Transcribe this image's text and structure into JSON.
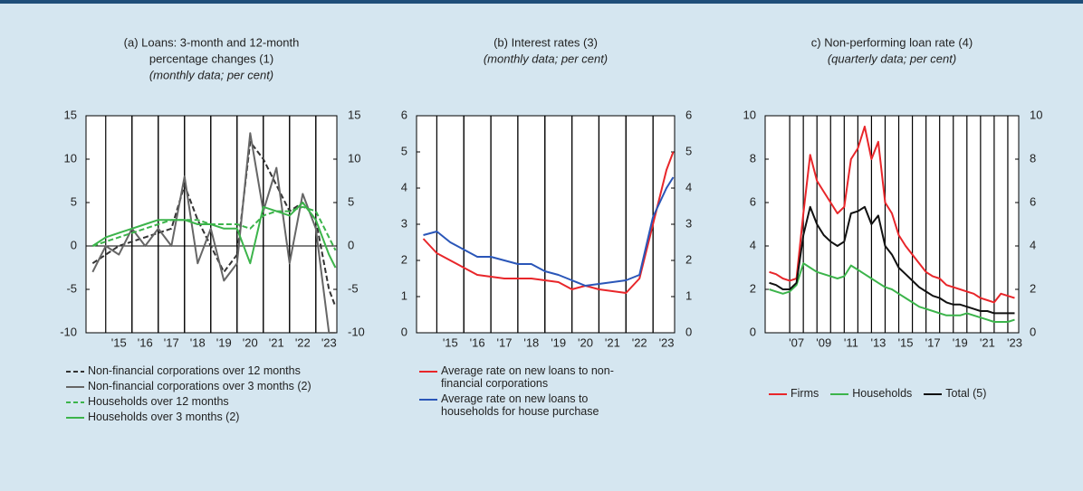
{
  "chart_data": [
    {
      "type": "line",
      "title": [
        "(a) Loans: 3-month and 12-month",
        "percentage changes (1)"
      ],
      "subtitle": "(monthly data; per cent)",
      "x": [
        2014.5,
        2015,
        2015.5,
        2016,
        2016.5,
        2017,
        2017.5,
        2018,
        2018.5,
        2019,
        2019.5,
        2020,
        2020.5,
        2021,
        2021.5,
        2022,
        2022.5,
        2023,
        2023.5,
        2023.75
      ],
      "xlim": [
        2014.25,
        2023.8
      ],
      "xticks": [
        {
          "value": 2015.5,
          "label": "'15"
        },
        {
          "value": 2016.5,
          "label": "'16"
        },
        {
          "value": 2017.5,
          "label": "'17"
        },
        {
          "value": 2018.5,
          "label": "'18"
        },
        {
          "value": 2019.5,
          "label": "'19"
        },
        {
          "value": 2020.5,
          "label": "'20"
        },
        {
          "value": 2021.5,
          "label": "'21"
        },
        {
          "value": 2022.5,
          "label": "'22"
        },
        {
          "value": 2023.5,
          "label": "'23"
        }
      ],
      "ylim": [
        -10,
        15
      ],
      "yticks": [
        -10,
        -5,
        0,
        5,
        10,
        15
      ],
      "y2lim": [
        -10,
        15
      ],
      "y2ticks": [
        -10,
        -5,
        0,
        5,
        10,
        15
      ],
      "series": [
        {
          "name": "Non-financial corporations over 12 months",
          "color": "#333333",
          "dashed": true,
          "values": [
            -2,
            -1,
            0,
            0.5,
            1,
            1.5,
            2,
            7,
            3,
            0,
            -3,
            -1,
            12,
            10,
            7,
            4,
            5,
            3,
            -5,
            -7
          ]
        },
        {
          "name": "Non-financial corporations over 3 months (2)",
          "color": "#666666",
          "dashed": false,
          "values": [
            -3,
            0,
            -1,
            2,
            0,
            2,
            0,
            8,
            -2,
            2,
            -4,
            -2,
            13,
            4,
            9,
            -2,
            6,
            2,
            -10,
            -10
          ]
        },
        {
          "name": "Households over 12 months",
          "color": "#3cb44b",
          "dashed": true,
          "values": [
            0,
            0.5,
            1,
            1.5,
            2,
            2.5,
            3,
            3,
            3,
            2.5,
            2.5,
            2.5,
            2,
            3.5,
            4,
            4,
            4.5,
            4,
            1,
            -0.5
          ]
        },
        {
          "name": "Households over 3 months (2)",
          "color": "#3cb44b",
          "dashed": false,
          "values": [
            0,
            1,
            1.5,
            2,
            2.5,
            3,
            3,
            3,
            2.5,
            2.5,
            2,
            2,
            -2,
            4.5,
            4,
            3.5,
            5,
            3,
            -1,
            -2.5
          ]
        }
      ]
    },
    {
      "type": "line",
      "title": [
        "(b) Interest rates (3)"
      ],
      "subtitle": "(monthly data; per cent)",
      "x": [
        2014.5,
        2015,
        2015.5,
        2016,
        2016.5,
        2017,
        2017.5,
        2018,
        2018.5,
        2019,
        2019.5,
        2020,
        2020.5,
        2021,
        2021.5,
        2022,
        2022.5,
        2023,
        2023.5,
        2023.75
      ],
      "xlim": [
        2014.25,
        2023.8
      ],
      "xticks": [
        {
          "value": 2015.5,
          "label": "'15"
        },
        {
          "value": 2016.5,
          "label": "'16"
        },
        {
          "value": 2017.5,
          "label": "'17"
        },
        {
          "value": 2018.5,
          "label": "'18"
        },
        {
          "value": 2019.5,
          "label": "'19"
        },
        {
          "value": 2020.5,
          "label": "'20"
        },
        {
          "value": 2021.5,
          "label": "'21"
        },
        {
          "value": 2022.5,
          "label": "'22"
        },
        {
          "value": 2023.5,
          "label": "'23"
        }
      ],
      "ylim": [
        0,
        6
      ],
      "yticks": [
        0,
        1,
        2,
        3,
        4,
        5,
        6
      ],
      "y2lim": [
        0,
        6
      ],
      "y2ticks": [
        0,
        1,
        2,
        3,
        4,
        5,
        6
      ],
      "series": [
        {
          "name": "Average rate on new loans to non-financial corporations",
          "color": "#e8262a",
          "dashed": false,
          "values": [
            2.6,
            2.2,
            2.0,
            1.8,
            1.6,
            1.55,
            1.5,
            1.5,
            1.5,
            1.45,
            1.4,
            1.2,
            1.3,
            1.2,
            1.15,
            1.1,
            1.5,
            3.0,
            4.5,
            5.0
          ]
        },
        {
          "name": "Average rate on new loans to households for house purchase",
          "color": "#2a56b8",
          "dashed": false,
          "values": [
            2.7,
            2.8,
            2.5,
            2.3,
            2.1,
            2.1,
            2.0,
            1.9,
            1.9,
            1.7,
            1.6,
            1.45,
            1.3,
            1.35,
            1.4,
            1.45,
            1.6,
            3.2,
            4.0,
            4.3
          ]
        }
      ]
    },
    {
      "type": "line",
      "title": [
        "c) Non-performing loan rate (4)"
      ],
      "subtitle": "(quarterly data; per cent)",
      "x": [
        2005.5,
        2006,
        2006.5,
        2007,
        2007.5,
        2008,
        2008.5,
        2009,
        2009.5,
        2010,
        2010.5,
        2011,
        2011.5,
        2012,
        2012.5,
        2013,
        2013.5,
        2014,
        2014.5,
        2015,
        2015.5,
        2016,
        2016.5,
        2017,
        2017.5,
        2018,
        2018.5,
        2019,
        2019.5,
        2020,
        2020.5,
        2021,
        2021.5,
        2022,
        2022.5,
        2023,
        2023.5
      ],
      "xlim": [
        2005.2,
        2023.8
      ],
      "xticks": [
        {
          "value": 2007.5,
          "label": "'07"
        },
        {
          "value": 2009.5,
          "label": "'09"
        },
        {
          "value": 2011.5,
          "label": "'11"
        },
        {
          "value": 2013.5,
          "label": "'13"
        },
        {
          "value": 2015.5,
          "label": "'15"
        },
        {
          "value": 2017.5,
          "label": "'17"
        },
        {
          "value": 2019.5,
          "label": "'19"
        },
        {
          "value": 2021.5,
          "label": "'21"
        },
        {
          "value": 2023.5,
          "label": "'23"
        }
      ],
      "ylim": [
        0,
        10
      ],
      "yticks": [
        0,
        2,
        4,
        6,
        8,
        10
      ],
      "y2lim": [
        0,
        10
      ],
      "y2ticks": [
        0,
        2,
        4,
        6,
        8,
        10
      ],
      "series": [
        {
          "name": "Firms",
          "color": "#e8262a",
          "dashed": false,
          "values": [
            2.8,
            2.7,
            2.5,
            2.4,
            2.5,
            5.5,
            8.2,
            7.0,
            6.5,
            6.0,
            5.5,
            5.8,
            8.0,
            8.5,
            9.5,
            8.0,
            8.8,
            6.0,
            5.5,
            4.5,
            4.0,
            3.6,
            3.2,
            2.8,
            2.6,
            2.5,
            2.2,
            2.1,
            2.0,
            1.9,
            1.8,
            1.6,
            1.5,
            1.4,
            1.8,
            1.7,
            1.6
          ]
        },
        {
          "name": "Households",
          "color": "#3cb44b",
          "dashed": false,
          "values": [
            2.0,
            1.9,
            1.8,
            1.9,
            2.2,
            3.2,
            3.0,
            2.8,
            2.7,
            2.6,
            2.5,
            2.6,
            3.1,
            2.9,
            2.7,
            2.5,
            2.3,
            2.1,
            2.0,
            1.8,
            1.6,
            1.4,
            1.2,
            1.1,
            1.0,
            0.9,
            0.8,
            0.8,
            0.8,
            0.9,
            0.8,
            0.7,
            0.6,
            0.5,
            0.5,
            0.5,
            0.6
          ]
        },
        {
          "name": "Total (5)",
          "color": "#111111",
          "dashed": false,
          "values": [
            2.3,
            2.2,
            2.0,
            2.0,
            2.3,
            4.5,
            5.8,
            5.0,
            4.5,
            4.2,
            4.0,
            4.2,
            5.5,
            5.6,
            5.8,
            5.0,
            5.4,
            4.0,
            3.6,
            3.0,
            2.7,
            2.4,
            2.1,
            1.9,
            1.7,
            1.6,
            1.4,
            1.3,
            1.3,
            1.2,
            1.1,
            1.0,
            1.0,
            0.9,
            0.9,
            0.9,
            0.9
          ]
        }
      ]
    }
  ]
}
